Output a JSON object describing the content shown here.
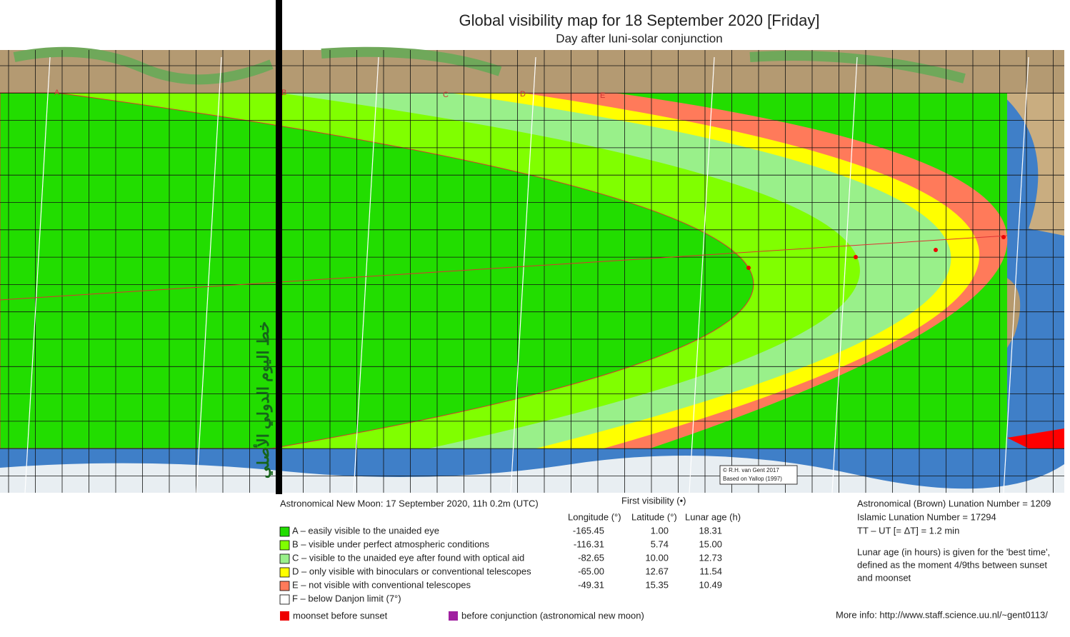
{
  "header": {
    "title": "Global visibility map for 18 September 2020 [Friday]",
    "subtitle": "Day after luni-solar conjunction"
  },
  "map": {
    "zone_labels": [
      "A",
      "B",
      "C",
      "D",
      "E"
    ],
    "arabic_label": "خط اليوم الدولي الأصلي",
    "credit": [
      "© R.H. van Gent 2017",
      "Based on Yallop (1997)"
    ]
  },
  "legend": {
    "new_moon": "Astronomical New Moon: 17 September 2020, 11h 0.2m (UTC)",
    "first_visibility": "First visibility (•)",
    "columns": [
      "Longitude (°)",
      "Latitude (°)",
      "Lunar age (h)"
    ],
    "rows": [
      {
        "label": "A – easily visible to the unaided eye",
        "longitude": "-165.45",
        "latitude": "1.00",
        "lunar_age": "18.31"
      },
      {
        "label": "B – visible under perfect atmospheric conditions",
        "longitude": "-116.31",
        "latitude": "5.74",
        "lunar_age": "15.00"
      },
      {
        "label": "C – visible to the unaided eye after found with optical aid",
        "longitude": "-82.65",
        "latitude": "10.00",
        "lunar_age": "12.73"
      },
      {
        "label": "D – only visible with binoculars or conventional telescopes",
        "longitude": "-65.00",
        "latitude": "12.67",
        "lunar_age": "11.54"
      },
      {
        "label": "E – not visible with conventional telescopes",
        "longitude": "-49.31",
        "latitude": "15.35",
        "lunar_age": "10.49"
      },
      {
        "label": "F – below Danjon limit (7°)"
      }
    ],
    "extra": [
      "moonset before sunset",
      "before conjunction (astronomical new moon)"
    ]
  },
  "info": {
    "lines": [
      "Astronomical (Brown) Lunation Number = 1209",
      "Islamic Lunation Number = 17294",
      "TT – UT [= ΔT] = 1.2 min"
    ],
    "note": [
      "Lunar age (in hours) is given for the 'best time',",
      "defined as the moment 4/9ths between sunset",
      "and moonset"
    ],
    "more_info": "More info: http://www.staff.science.uu.nl/~gent0113/"
  }
}
